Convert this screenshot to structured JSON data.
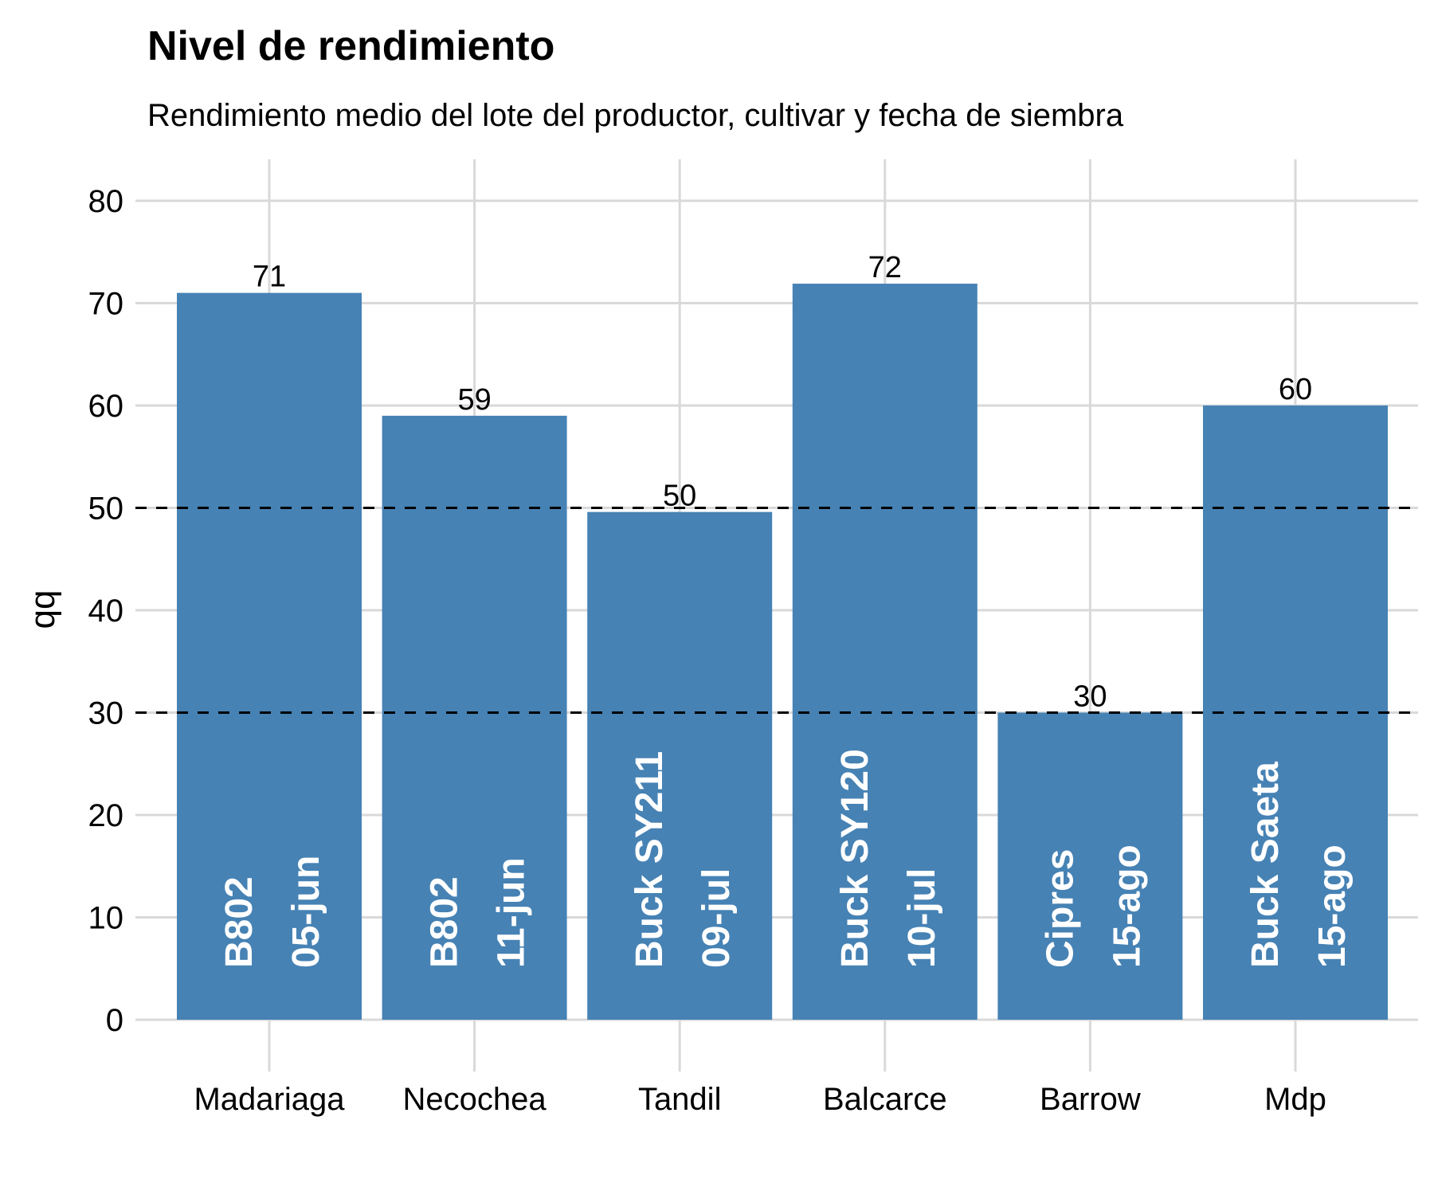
{
  "chart_data": {
    "type": "bar",
    "title": "Nivel de rendimiento",
    "subtitle": "Rendimiento medio del lote del productor, cultivar y fecha de siembra",
    "xlabel": "",
    "ylabel": "qq",
    "ylim": [
      0,
      80
    ],
    "yticks": [
      0,
      10,
      20,
      30,
      40,
      50,
      60,
      70,
      80
    ],
    "grid": true,
    "categories": [
      "Madariaga",
      "Necochea",
      "Tandil",
      "Balcarce",
      "Barrow",
      "Mdp"
    ],
    "values": [
      71,
      59,
      49.6,
      71.9,
      30,
      60
    ],
    "value_labels": [
      "71",
      "59",
      "50",
      "72",
      "30",
      "60"
    ],
    "cultivars": [
      "B802",
      "B802",
      "Buck SY211",
      "Buck SY120",
      "Cipres",
      "Buck Saeta"
    ],
    "sowing_dates": [
      "05-jun",
      "11-jun",
      "09-jul",
      "10-jul",
      "15-ago",
      "15-ago"
    ],
    "reference_lines": [
      30,
      50
    ],
    "colors": {
      "bar": "#4682b4",
      "grid": "#d9d9d9",
      "reference": "#000000",
      "inner_text": "#ffffff"
    }
  }
}
